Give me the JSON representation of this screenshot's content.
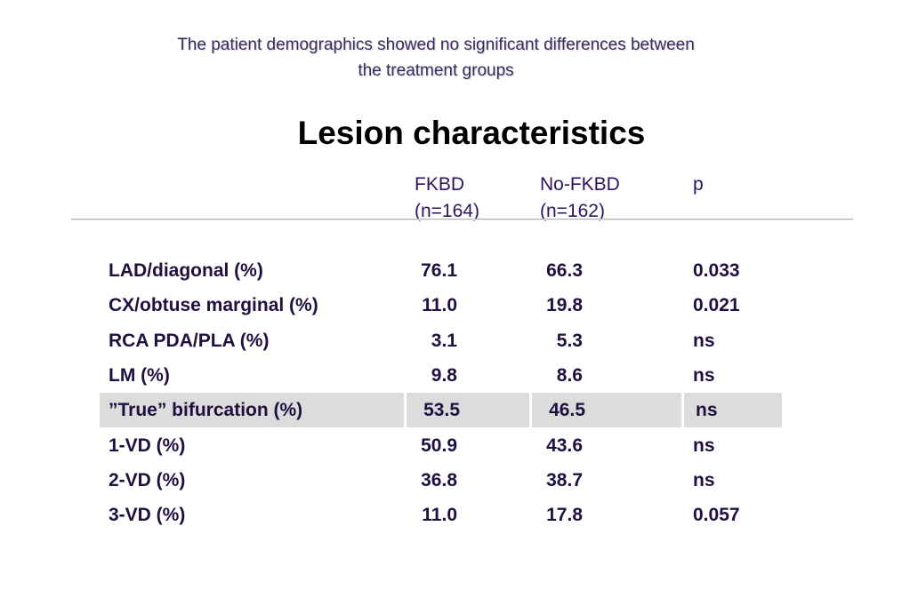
{
  "subtitle": {
    "line1": "The patient demographics showed no significant differences between",
    "line2": "the treatment groups"
  },
  "title": "Lesion characteristics",
  "table": {
    "headers": [
      {
        "line1": "FKBD",
        "line2": "(n=164)"
      },
      {
        "line1": "No-FKBD",
        "line2": "(n=162)"
      },
      {
        "line1": "p",
        "line2": ""
      }
    ],
    "rows": [
      {
        "label": "LAD/diagonal (%)",
        "fkbd": "76.1",
        "nofkbd": "66.3",
        "p": "0.033"
      },
      {
        "label": "CX/obtuse marginal (%)",
        "fkbd": "11.0",
        "nofkbd": "19.8",
        "p": "0.021"
      },
      {
        "label": "RCA PDA/PLA (%)",
        "fkbd": "3.1",
        "nofkbd": "5.3",
        "p": "ns"
      },
      {
        "label": "LM (%)",
        "fkbd": "9.8",
        "nofkbd": "8.6",
        "p": "ns"
      },
      {
        "label": "”True” bifurcation (%)",
        "fkbd": "53.5",
        "nofkbd": "46.5",
        "p": "ns"
      },
      {
        "label": "1-VD (%)",
        "fkbd": "50.9",
        "nofkbd": "43.6",
        "p": "ns"
      },
      {
        "label": "2-VD (%)",
        "fkbd": "36.8",
        "nofkbd": "38.7",
        "p": "ns"
      },
      {
        "label": "3-VD (%)",
        "fkbd": "11.0",
        "nofkbd": "17.8",
        "p": "0.057"
      }
    ],
    "highlight_color": "#dcdcdc"
  }
}
